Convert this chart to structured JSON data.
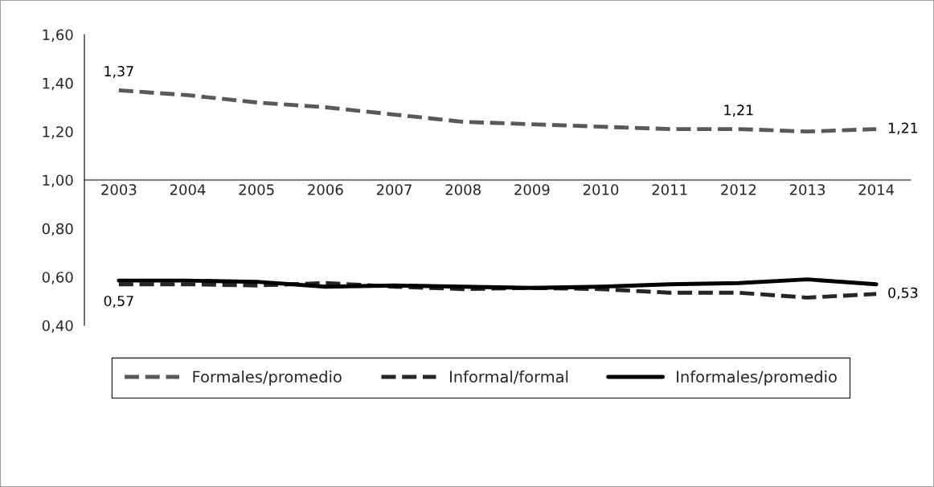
{
  "chart_data": {
    "type": "line",
    "categories": [
      "2003",
      "2004",
      "2005",
      "2006",
      "2007",
      "2008",
      "2009",
      "2010",
      "2011",
      "2012",
      "2013",
      "2014"
    ],
    "series": [
      {
        "name": "Formales/promedio",
        "color": "#595959",
        "line_style": "dashed",
        "values": [
          1.37,
          1.35,
          1.32,
          1.3,
          1.27,
          1.24,
          1.23,
          1.22,
          1.21,
          1.21,
          1.2,
          1.21
        ],
        "value_labels": [
          "1,37",
          null,
          null,
          null,
          null,
          null,
          null,
          null,
          null,
          "1,21",
          null,
          "1,21"
        ]
      },
      {
        "name": "Informal/formal",
        "color": "#262626",
        "line_style": "dashed",
        "values": [
          0.57,
          0.57,
          0.565,
          0.575,
          0.56,
          0.55,
          0.555,
          0.55,
          0.535,
          0.535,
          0.515,
          0.53
        ],
        "value_labels": [
          "0,57",
          null,
          null,
          null,
          null,
          null,
          null,
          null,
          null,
          null,
          null,
          "0,53"
        ]
      },
      {
        "name": "Informales/promedio",
        "color": "#000000",
        "line_style": "solid",
        "values": [
          0.585,
          0.585,
          0.58,
          0.56,
          0.565,
          0.56,
          0.555,
          0.56,
          0.57,
          0.575,
          0.59,
          0.57
        ]
      }
    ],
    "ylim": [
      0.4,
      1.6
    ],
    "yticks": [
      {
        "value": 0.4,
        "label": "0,40"
      },
      {
        "value": 0.6,
        "label": "0,60"
      },
      {
        "value": 0.8,
        "label": "0,80"
      },
      {
        "value": 1.0,
        "label": "1,00"
      },
      {
        "value": 1.2,
        "label": "1,20"
      },
      {
        "value": 1.4,
        "label": "1,40"
      },
      {
        "value": 1.6,
        "label": "1,60"
      }
    ],
    "grid": false,
    "legend": "bottom",
    "marker": "none"
  }
}
